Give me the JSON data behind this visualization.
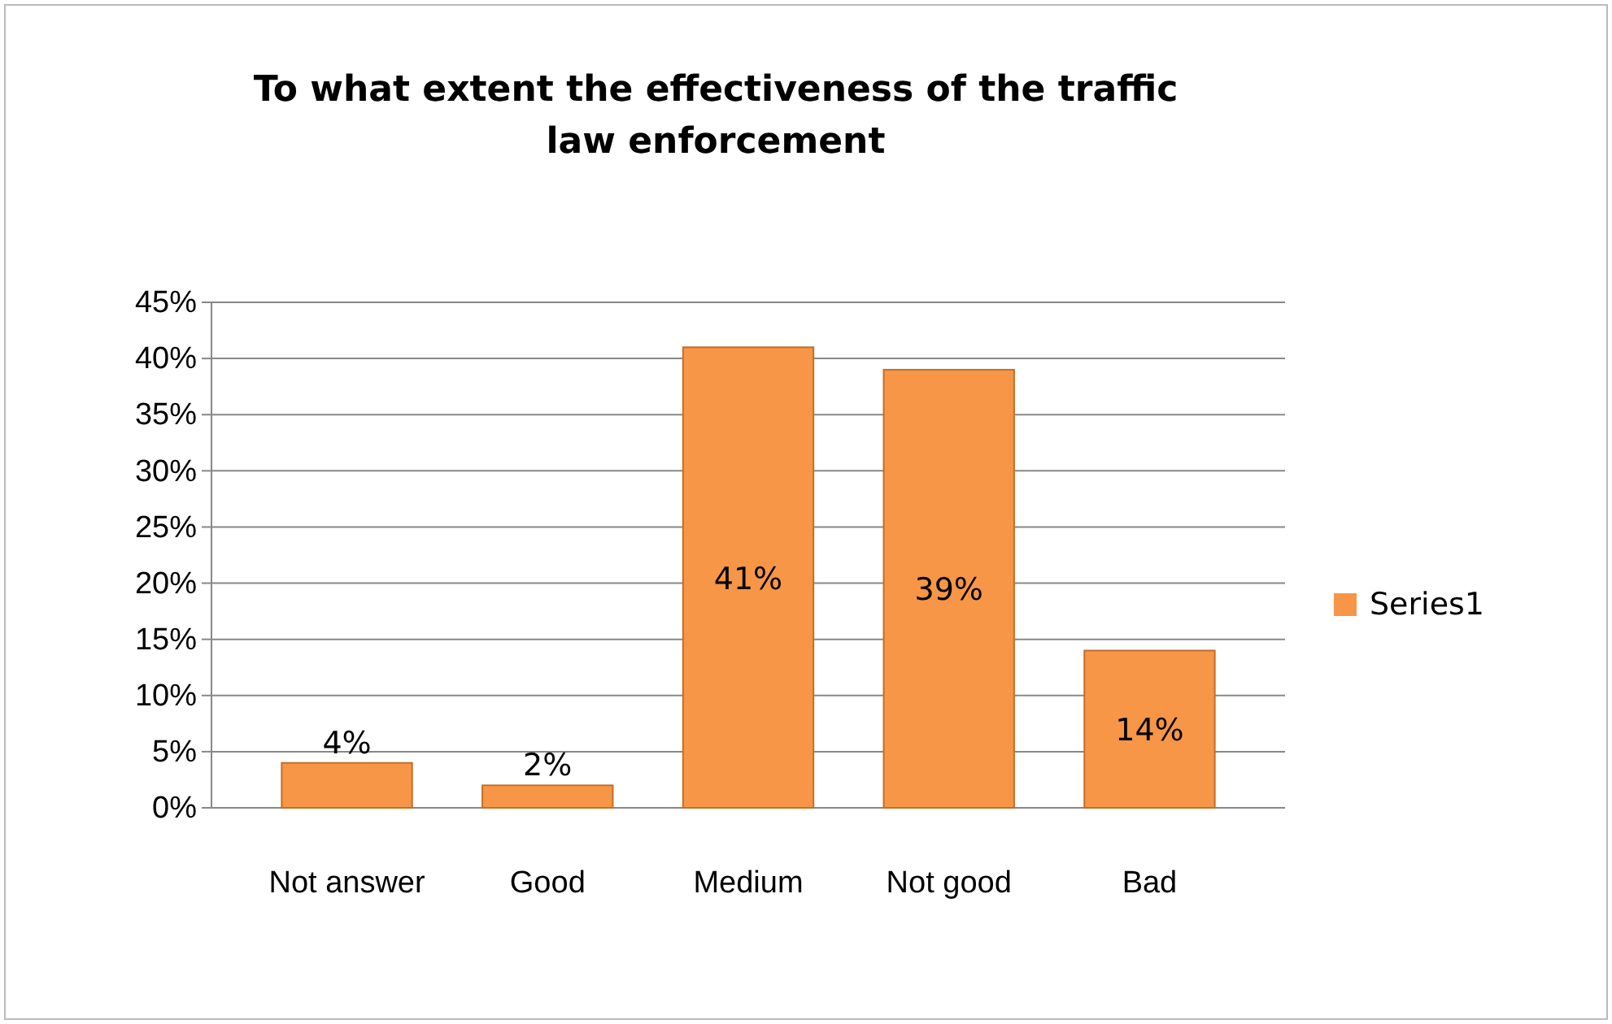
{
  "chart_data": {
    "type": "bar",
    "title": "To what extent the effectiveness of the traffic law enforcement",
    "categories": [
      "Not answer",
      "Good",
      "Medium",
      "Not good",
      "Bad"
    ],
    "series": [
      {
        "name": "Series1",
        "color": "#f79646",
        "values": [
          4,
          2,
          41,
          39,
          14
        ],
        "value_labels": [
          "4%",
          "2%",
          "41%",
          "39%",
          "14%"
        ]
      }
    ],
    "ylim": [
      0,
      45
    ],
    "yticks": [
      {
        "value": 0,
        "label": "0%"
      },
      {
        "value": 5,
        "label": "5%"
      },
      {
        "value": 10,
        "label": "10%"
      },
      {
        "value": 15,
        "label": "15%"
      },
      {
        "value": 20,
        "label": "20%"
      },
      {
        "value": 25,
        "label": "25%"
      },
      {
        "value": 30,
        "label": "30%"
      },
      {
        "value": 35,
        "label": "35%"
      },
      {
        "value": 40,
        "label": "40%"
      },
      {
        "value": 45,
        "label": "45%"
      }
    ],
    "grid": "y",
    "legend": "right"
  }
}
